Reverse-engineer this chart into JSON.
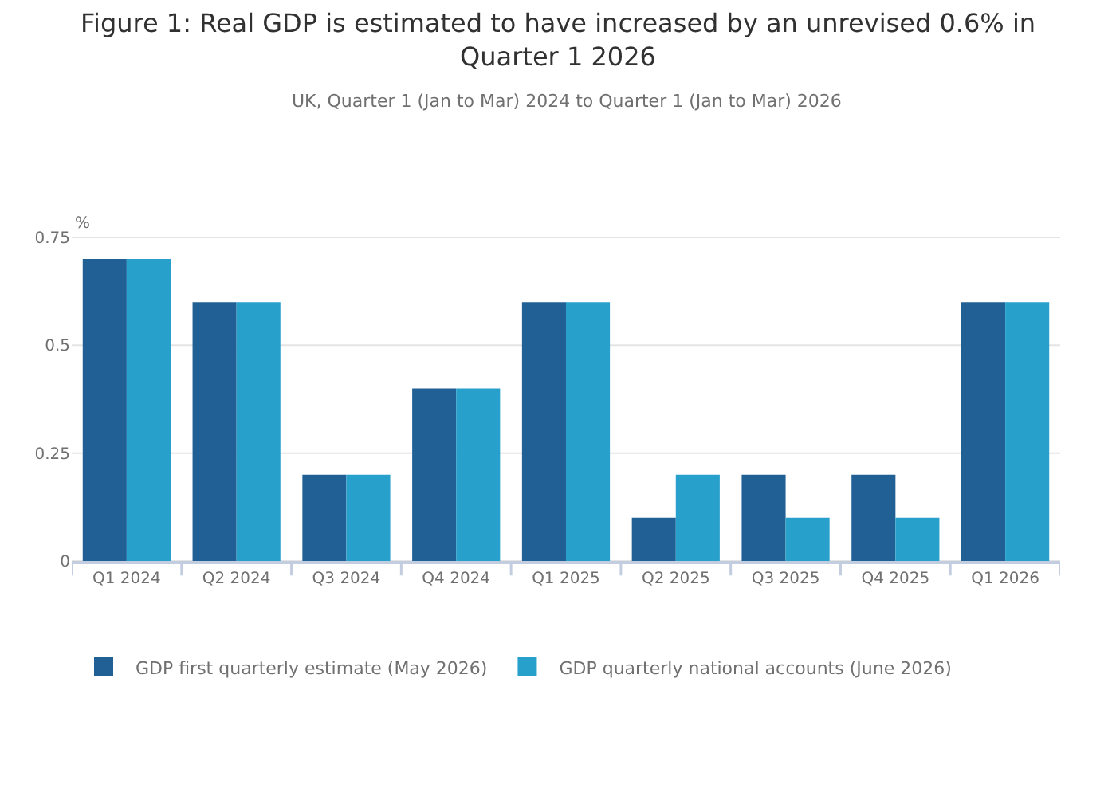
{
  "chart_data": {
    "type": "bar",
    "title": "Figure 1: Real GDP is estimated to have increased by an unrevised 0.6% in Quarter 1 2026",
    "subtitle": "UK, Quarter 1 (Jan to Mar) 2024 to Quarter 1 (Jan to Mar) 2026",
    "ylabel": "%",
    "categories": [
      "Q1 2024",
      "Q2 2024",
      "Q3 2024",
      "Q4 2024",
      "Q1 2025",
      "Q2 2025",
      "Q3 2025",
      "Q4 2025",
      "Q1 2026"
    ],
    "series": [
      {
        "name": "GDP first quarterly estimate (May 2026)",
        "color": "#206095",
        "values": [
          0.7,
          0.6,
          0.2,
          0.4,
          0.6,
          0.1,
          0.2,
          0.2,
          0.6
        ]
      },
      {
        "name": "GDP quarterly national accounts (June 2026)",
        "color": "#27a0cc",
        "values": [
          0.7,
          0.6,
          0.2,
          0.4,
          0.6,
          0.2,
          0.1,
          0.1,
          0.6
        ]
      }
    ],
    "ylim": [
      0,
      0.75
    ],
    "yticks": [
      0,
      0.25,
      0.5,
      0.75
    ],
    "grid": "y",
    "legend": "bottom"
  }
}
